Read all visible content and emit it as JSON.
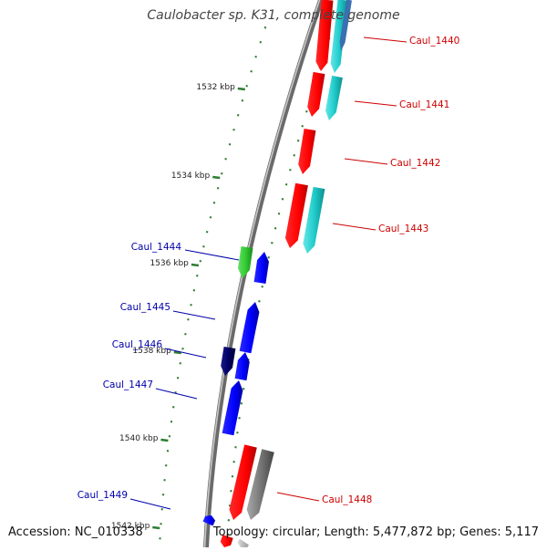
{
  "title": "Caulobacter sp. K31, complete genome",
  "accession": "Accession: NC_010338",
  "topology": "Topology: circular; Length: 5,477,872 bp; Genes: 5,117",
  "ticks": [
    "1532 kbp",
    "1534 kbp",
    "1536 kbp",
    "1538 kbp",
    "1540 kbp",
    "1542 kbp"
  ],
  "genes": [
    {
      "name": "Caul_1440",
      "strand": "forward",
      "color": "#cc0000",
      "label_color": "#cc0000"
    },
    {
      "name": "Caul_1441",
      "strand": "forward",
      "color": "#cc0000",
      "label_color": "#cc0000"
    },
    {
      "name": "Caul_1442",
      "strand": "forward",
      "color": "#cc0000",
      "label_color": "#cc0000"
    },
    {
      "name": "Caul_1443",
      "strand": "forward",
      "color": "#cc0000",
      "label_color": "#cc0000"
    },
    {
      "name": "Caul_1444",
      "strand": "reverse",
      "color": "#0000cc",
      "label_color": "#0000aa"
    },
    {
      "name": "Caul_1445",
      "strand": "reverse",
      "color": "#0000cc",
      "label_color": "#0000aa"
    },
    {
      "name": "Caul_1446",
      "strand": "reverse",
      "color": "#0000cc",
      "label_color": "#0000aa"
    },
    {
      "name": "Caul_1447",
      "strand": "reverse",
      "color": "#0000cc",
      "label_color": "#0000aa"
    },
    {
      "name": "Caul_1448",
      "strand": "forward",
      "color": "#cc0000",
      "label_color": "#cc0000"
    },
    {
      "name": "Caul_1449",
      "strand": "reverse",
      "color": "#0000cc",
      "label_color": "#0000aa"
    }
  ],
  "colors": {
    "forward_cds": "#ff0000",
    "reverse_cds": "#0000ff",
    "forward_feature": "#22cccc",
    "reverse_feature_green": "#33cc33",
    "reverse_feature_navy": "#000066",
    "gray_feature": "#777777",
    "backbone": "#888888",
    "tick": "#2e7d32"
  }
}
